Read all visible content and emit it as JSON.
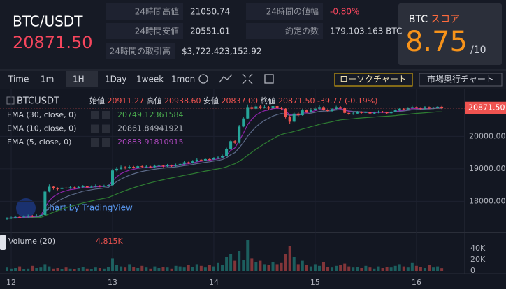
{
  "header": {
    "pair": "BTC/USDT",
    "price": "20871.50",
    "stats": [
      {
        "label": "24時間高値",
        "value": "21050.74"
      },
      {
        "label": "24時間安値",
        "value": "20551.01"
      },
      {
        "label": "24時間の取引高",
        "value": "$3,722,423,152.92"
      },
      {
        "label": "24時間の値幅",
        "value": "-0.80%",
        "color": "#f6465d"
      },
      {
        "label": "約定の数",
        "value": "179,103.163 BTC"
      }
    ]
  },
  "score": {
    "label": "BTC",
    "label2": "スコア",
    "value": "8.75",
    "max": "/10"
  },
  "toolbar": {
    "items": [
      "Time",
      "1m",
      "1H",
      "1Day",
      "1week",
      "1mon"
    ],
    "buttons": [
      "ローソクチャート",
      "市場奥行チャート"
    ]
  },
  "chart_data": {
    "type": "candlestick",
    "symbol": "BTCUSDT",
    "ohlc_legend": [
      {
        "label": "始値",
        "value": "20911.27"
      },
      {
        "label": "高値",
        "value": "20938.60"
      },
      {
        "label": "安値",
        "value": "20837.00"
      },
      {
        "label": "終値",
        "value": "20871.50"
      }
    ],
    "change": "-39.77 (-0.19%)",
    "watermark": "Chart by TradingView",
    "last_price_label": "20871.50",
    "up_color": "#26a69a",
    "down_color": "#ef5350",
    "ylim": [
      17150,
      21360
    ],
    "yticks": [
      {
        "value": 18000,
        "label": "18000.00"
      },
      {
        "value": 19000,
        "label": "19000.00"
      },
      {
        "value": 20000,
        "label": "20000.00"
      }
    ],
    "categories": [
      null,
      "12",
      null,
      null,
      null,
      null,
      null,
      null,
      null,
      null,
      null,
      null,
      null,
      null,
      null,
      null,
      null,
      null,
      null,
      null,
      null,
      null,
      null,
      null,
      null,
      "13",
      null,
      null,
      null,
      null,
      null,
      null,
      null,
      null,
      null,
      null,
      null,
      null,
      null,
      null,
      null,
      null,
      null,
      null,
      null,
      null,
      null,
      null,
      null,
      "14",
      null,
      null,
      null,
      null,
      null,
      null,
      null,
      null,
      null,
      null,
      null,
      null,
      null,
      null,
      null,
      null,
      null,
      null,
      null,
      null,
      null,
      null,
      null,
      "15",
      null,
      null,
      null,
      null,
      null,
      null,
      null,
      null,
      null,
      null,
      null,
      null,
      null,
      null,
      null,
      null,
      null,
      null,
      null,
      null,
      null,
      null,
      null,
      "16",
      null,
      null,
      null,
      null,
      null,
      null
    ],
    "candles": [
      [
        17460,
        17510,
        17430,
        17480
      ],
      [
        17480,
        17530,
        17450,
        17500
      ],
      [
        17500,
        17560,
        17470,
        17520
      ],
      [
        17520,
        17550,
        17480,
        17510
      ],
      [
        17510,
        17570,
        17490,
        17530
      ],
      [
        17530,
        17590,
        17500,
        17550
      ],
      [
        17550,
        17580,
        17510,
        17540
      ],
      [
        17540,
        17600,
        17520,
        17560
      ],
      [
        17560,
        17620,
        17540,
        17580
      ],
      [
        17580,
        18350,
        17560,
        18300
      ],
      [
        18300,
        18520,
        18280,
        18450
      ],
      [
        18450,
        18480,
        18360,
        18400
      ],
      [
        18400,
        18430,
        18340,
        18380
      ],
      [
        18380,
        18460,
        18360,
        18420
      ],
      [
        18420,
        18450,
        18370,
        18400
      ],
      [
        18400,
        18470,
        18380,
        18430
      ],
      [
        18430,
        18450,
        18380,
        18410
      ],
      [
        18410,
        18480,
        18390,
        18440
      ],
      [
        18440,
        18500,
        18420,
        18460
      ],
      [
        18460,
        18480,
        18400,
        18430
      ],
      [
        18430,
        18490,
        18410,
        18450
      ],
      [
        18450,
        18520,
        18430,
        18480
      ],
      [
        18480,
        18500,
        18430,
        18460
      ],
      [
        18460,
        18510,
        18440,
        18470
      ],
      [
        18470,
        18540,
        18450,
        18500
      ],
      [
        18500,
        19000,
        18480,
        18950
      ],
      [
        18950,
        19060,
        18920,
        19000
      ],
      [
        19000,
        19100,
        18980,
        19050
      ],
      [
        19050,
        19080,
        18990,
        19020
      ],
      [
        19020,
        19100,
        19000,
        19060
      ],
      [
        19060,
        19090,
        19010,
        19040
      ],
      [
        19040,
        19120,
        19020,
        19080
      ],
      [
        19080,
        19100,
        19030,
        19060
      ],
      [
        19060,
        19110,
        19040,
        19070
      ],
      [
        19070,
        19090,
        19020,
        19050
      ],
      [
        19050,
        19130,
        19030,
        19090
      ],
      [
        19090,
        19140,
        19070,
        19100
      ],
      [
        19100,
        19120,
        19050,
        19080
      ],
      [
        19080,
        19150,
        19060,
        19110
      ],
      [
        19110,
        19130,
        19060,
        19090
      ],
      [
        19090,
        19160,
        19070,
        19120
      ],
      [
        19120,
        19190,
        19100,
        19150
      ],
      [
        19150,
        19240,
        19130,
        19200
      ],
      [
        19200,
        19220,
        19150,
        19180
      ],
      [
        19180,
        19270,
        19160,
        19230
      ],
      [
        19230,
        19320,
        19210,
        19280
      ],
      [
        19280,
        19300,
        19230,
        19260
      ],
      [
        19260,
        19340,
        19240,
        19300
      ],
      [
        19300,
        19320,
        19250,
        19290
      ],
      [
        19290,
        19360,
        19270,
        19320
      ],
      [
        19320,
        19390,
        19300,
        19350
      ],
      [
        19350,
        19440,
        19330,
        19400
      ],
      [
        19400,
        19650,
        19380,
        19600
      ],
      [
        19600,
        19900,
        19580,
        19850
      ],
      [
        19850,
        19880,
        19760,
        19800
      ],
      [
        19800,
        20350,
        19780,
        20300
      ],
      [
        20300,
        20600,
        20280,
        20550
      ],
      [
        20550,
        20980,
        20530,
        20900
      ],
      [
        20900,
        20950,
        20800,
        20850
      ],
      [
        20850,
        20990,
        20830,
        20920
      ],
      [
        20920,
        20960,
        20840,
        20880
      ],
      [
        20880,
        20950,
        20860,
        20900
      ],
      [
        20900,
        20930,
        20820,
        20860
      ],
      [
        20860,
        20980,
        20840,
        20930
      ],
      [
        20930,
        20960,
        20850,
        20880
      ],
      [
        20880,
        20910,
        20800,
        20850
      ],
      [
        20850,
        20870,
        20550,
        20600
      ],
      [
        20600,
        20640,
        20380,
        20450
      ],
      [
        20450,
        20750,
        20430,
        20700
      ],
      [
        20700,
        20740,
        20600,
        20650
      ],
      [
        20650,
        20850,
        20630,
        20800
      ],
      [
        20800,
        20830,
        20720,
        20750
      ],
      [
        20750,
        20860,
        20730,
        20820
      ],
      [
        20820,
        20900,
        20800,
        20850
      ],
      [
        20850,
        20950,
        20830,
        20900
      ],
      [
        20900,
        20930,
        20790,
        20820
      ],
      [
        20820,
        20850,
        20750,
        20780
      ],
      [
        20780,
        20880,
        20760,
        20840
      ],
      [
        20840,
        20940,
        20820,
        20900
      ],
      [
        20900,
        20930,
        20850,
        20880
      ],
      [
        20880,
        20900,
        20700,
        20720
      ],
      [
        20720,
        20750,
        20650,
        20680
      ],
      [
        20680,
        20740,
        20660,
        20700
      ],
      [
        20700,
        20780,
        20680,
        20750
      ],
      [
        20750,
        20770,
        20700,
        20720
      ],
      [
        20720,
        20770,
        20700,
        20740
      ],
      [
        20740,
        20760,
        20680,
        20700
      ],
      [
        20700,
        20760,
        20680,
        20730
      ],
      [
        20730,
        20790,
        20710,
        20760
      ],
      [
        20760,
        20780,
        20720,
        20740
      ],
      [
        20740,
        20760,
        20690,
        20710
      ],
      [
        20710,
        20790,
        20690,
        20760
      ],
      [
        20760,
        20830,
        20740,
        20800
      ],
      [
        20800,
        20880,
        20780,
        20850
      ],
      [
        20850,
        20870,
        20800,
        20830
      ],
      [
        20830,
        20900,
        20810,
        20870
      ],
      [
        20870,
        20940,
        20850,
        20900
      ],
      [
        20900,
        20920,
        20850,
        20880
      ],
      [
        20880,
        20900,
        20820,
        20850
      ],
      [
        20850,
        20930,
        20830,
        20900
      ],
      [
        20900,
        20920,
        20840,
        20860
      ],
      [
        20860,
        20910,
        20840,
        20890
      ],
      [
        20890,
        20930,
        20860,
        20911.27
      ],
      [
        20911.27,
        20938.6,
        20837,
        20871.5
      ]
    ],
    "indicators": [
      {
        "name": "EMA (30, close, 0)",
        "color": "#4caf50",
        "line_color": "#2e7d32",
        "values": [
          17480,
          17481,
          17484,
          17486,
          17489,
          17493,
          17496,
          17500,
          17505,
          17557,
          17615,
          17666,
          17712,
          17759,
          17800,
          17841,
          17878,
          17914,
          17949,
          17980,
          18010,
          18040,
          18067,
          18093,
          18119,
          18173,
          18226,
          18279,
          18327,
          18374,
          18417,
          18460,
          18499,
          18538,
          18571,
          18604,
          18636,
          18665,
          18694,
          18720,
          18747,
          18773,
          18801,
          18826,
          18852,
          18880,
          18905,
          18930,
          18953,
          18977,
          19000,
          19026,
          19062,
          19113,
          19157,
          19231,
          19316,
          19418,
          19510,
          19602,
          19687,
          19772,
          19849,
          19930,
          20001,
          20056,
          20093,
          20116,
          20153,
          20185,
          20225,
          20258,
          20294,
          20330,
          20368,
          20397,
          20422,
          20450,
          20479,
          20505,
          20519,
          20529,
          20540,
          20554,
          20565,
          20576,
          20584,
          20593,
          20604,
          20613,
          20619,
          20628,
          20639,
          20653,
          20664,
          20677,
          20692,
          20704,
          20713,
          20725,
          20733,
          20743,
          20754,
          20749.12361584
        ]
      },
      {
        "name": "EMA (10, close, 0)",
        "color": "#b2b5be",
        "line_color": "#5d6b8a",
        "values": [
          17480,
          17484,
          17490,
          17494,
          17500,
          17509,
          17515,
          17523,
          17533,
          17671,
          17811,
          17917,
          18000,
          18076,
          18134,
          18187,
          18227,
          18269,
          18311,
          18332,
          18357,
          18379,
          18394,
          18408,
          18425,
          18519,
          18606,
          18686,
          18746,
          18803,
          18846,
          18888,
          18919,
          18946,
          18965,
          18988,
          19008,
          19021,
          19037,
          19047,
          19060,
          19076,
          19098,
          19113,
          19134,
          19160,
          19178,
          19200,
          19216,
          19238,
          19258,
          19284,
          19341,
          19438,
          19503,
          19646,
          19809,
          20005,
          20157,
          20294,
          20399,
          20489,
          20556,
          20623,
          20668,
          20700,
          20682,
          20640,
          20651,
          20651,
          20678,
          20690,
          20713,
          20738,
          20767,
          20777,
          20778,
          20789,
          20809,
          20822,
          20801,
          20779,
          20765,
          20762,
          20754,
          20752,
          20743,
          20741,
          20745,
          20744,
          20738,
          20741,
          20752,
          20770,
          20781,
          20797,
          20816,
          20827,
          20831,
          20843,
          20845,
          20853,
          20866,
          20861.84941921
        ]
      },
      {
        "name": "EMA (5, close, 0)",
        "color": "#ab47bc",
        "line_color": "#8e24aa",
        "values": [
          17480,
          17487,
          17498,
          17502,
          17511,
          17524,
          17529,
          17539,
          17553,
          17802,
          18018,
          18145,
          18223,
          18289,
          18326,
          18361,
          18377,
          18398,
          18419,
          18423,
          18432,
          18448,
          18452,
          18458,
          18472,
          18631,
          18754,
          18853,
          18909,
          18959,
          18986,
          19017,
          19031,
          19044,
          19046,
          19061,
          19074,
          19076,
          19087,
          19088,
          19099,
          19116,
          19144,
          19156,
          19181,
          19214,
          19229,
          19253,
          19265,
          19283,
          19305,
          19337,
          19425,
          19567,
          19645,
          19863,
          20092,
          20361,
          20524,
          20656,
          20731,
          20787,
          20811,
          20851,
          20861,
          20857,
          20771,
          20664,
          20676,
          20667,
          20711,
          20724,
          20756,
          20787,
          20825,
          20823,
          20809,
          20819,
          20846,
          20857,
          20811,
          20767,
          20745,
          20747,
          20738,
          20739,
          20726,
          20727,
          20738,
          20739,
          20729,
          20739,
          20759,
          20789,
          20803,
          20825,
          20850,
          20860,
          20857,
          20871,
          20867,
          20875,
          20887,
          20883.91810915
        ]
      }
    ],
    "volume": {
      "name": "Volume (20)",
      "value_label": "4.815K",
      "ylim": [
        -5000,
        62500
      ],
      "yticks": [
        {
          "value": 40000,
          "label": "40K"
        },
        {
          "value": 20000,
          "label": "20K"
        },
        0
      ],
      "values": [
        6000,
        4000,
        5000,
        8000,
        3000,
        4000,
        9000,
        5000,
        6000,
        12000,
        8000,
        4000,
        5000,
        3000,
        6000,
        4000,
        3000,
        5000,
        7000,
        4000,
        3000,
        6000,
        5000,
        4000,
        7000,
        22000,
        10000,
        8000,
        6000,
        12000,
        7000,
        5000,
        9000,
        6000,
        4000,
        8000,
        5000,
        7000,
        6000,
        4000,
        9000,
        8000,
        6000,
        10000,
        7000,
        12000,
        9000,
        6000,
        11000,
        8000,
        14000,
        10000,
        25000,
        30000,
        18000,
        35000,
        20000,
        55000,
        22000,
        15000,
        18000,
        12000,
        10000,
        16000,
        12000,
        14000,
        30000,
        45000,
        25000,
        12000,
        18000,
        10000,
        8000,
        12000,
        9000,
        15000,
        7000,
        6000,
        9000,
        11000,
        13000,
        8000,
        6000,
        7000,
        5000,
        9000,
        6000,
        4000,
        8000,
        5000,
        7000,
        6000,
        9000,
        12000,
        8000,
        6000,
        14000,
        9000,
        7000,
        5000,
        10000,
        6000,
        8000,
        4815
      ]
    }
  }
}
